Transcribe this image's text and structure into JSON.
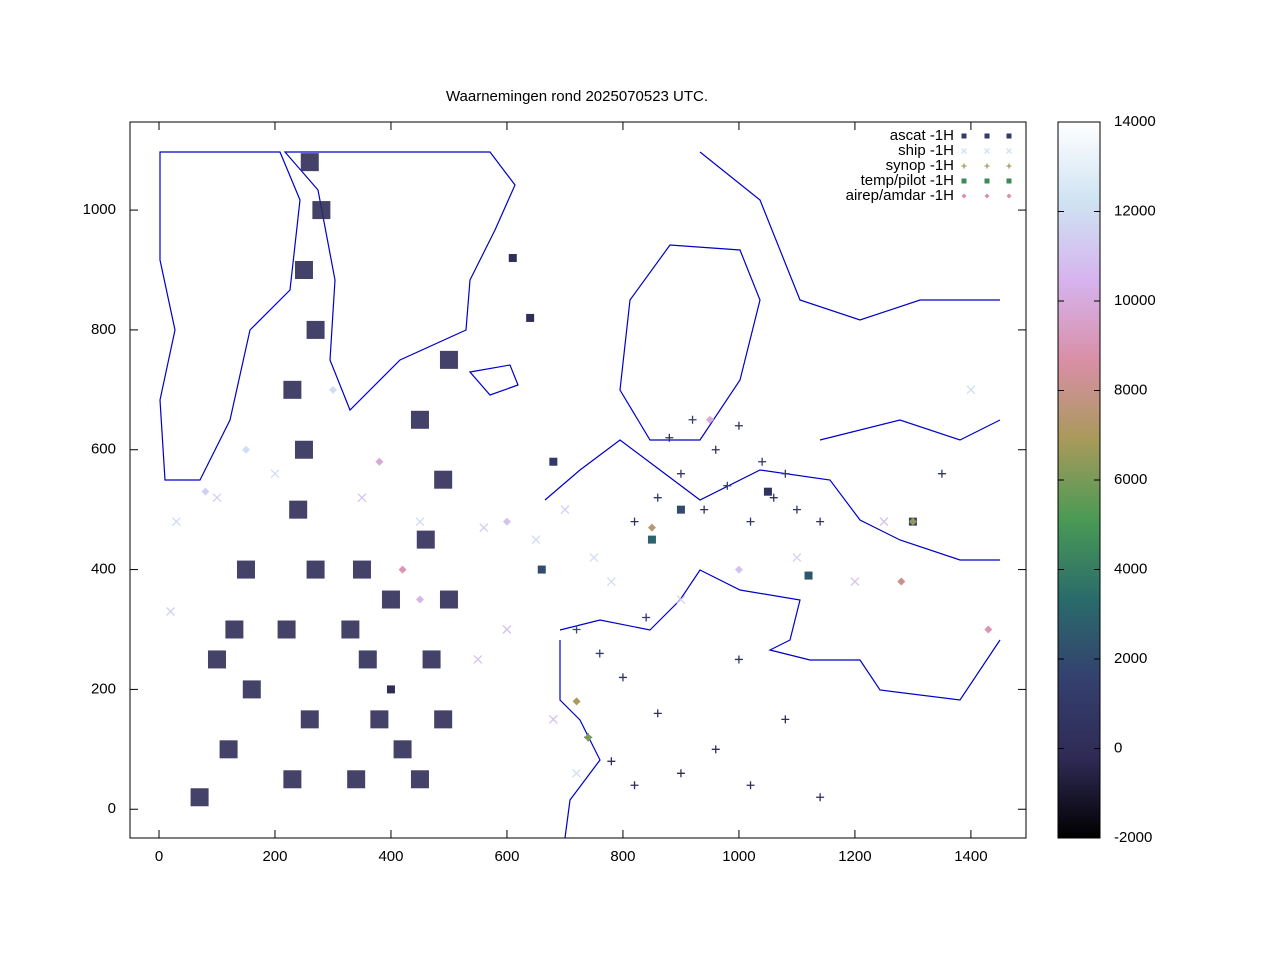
{
  "chart_data": {
    "type": "scatter",
    "title": "Waarnemingen rond 2025070523 UTC.",
    "xlim": [
      -50,
      1495
    ],
    "ylim": [
      -48,
      1147
    ],
    "xticks": [
      0,
      200,
      400,
      600,
      800,
      1000,
      1200,
      1400
    ],
    "yticks": [
      0,
      200,
      400,
      600,
      800,
      1000
    ],
    "zlim": [
      -2000,
      14000
    ],
    "zticks": [
      -2000,
      0,
      2000,
      4000,
      6000,
      8000,
      10000,
      12000,
      14000
    ],
    "palette": [
      "#000000",
      "#2f2a55",
      "#34406e",
      "#2a6b6b",
      "#4a9a55",
      "#a89a5a",
      "#d98fa6",
      "#d6b3ee",
      "#cfe3f2",
      "#ffffff"
    ],
    "legend": "upper right",
    "series": [
      {
        "name": "ascat -1H",
        "symbol": "square",
        "color": "#343a6a",
        "x": [
          70,
          120,
          160,
          130,
          150,
          100,
          230,
          260,
          220,
          270,
          240,
          250,
          230,
          270,
          250,
          280,
          260,
          340,
          380,
          360,
          400,
          350,
          450,
          490,
          470,
          500,
          460,
          490,
          450,
          500,
          420,
          330
        ],
        "y": [
          20,
          100,
          200,
          300,
          400,
          250,
          50,
          150,
          300,
          400,
          500,
          600,
          700,
          800,
          900,
          1000,
          1080,
          50,
          150,
          250,
          350,
          400,
          50,
          150,
          250,
          350,
          450,
          550,
          650,
          750,
          100,
          300
        ],
        "z": [
          0,
          0,
          0,
          0,
          0,
          0,
          0,
          0,
          0,
          0,
          0,
          0,
          0,
          0,
          0,
          0,
          0,
          0,
          0,
          0,
          0,
          0,
          0,
          0,
          0,
          0,
          0,
          0,
          0,
          0,
          0,
          0
        ]
      },
      {
        "name": "ship -1H",
        "symbol": "cross",
        "color": "#cfe3f2",
        "x": [
          30,
          100,
          200,
          350,
          450,
          560,
          650,
          600,
          700,
          750,
          680,
          780,
          1100,
          1250,
          1400,
          20,
          550,
          720,
          900,
          1200
        ],
        "y": [
          480,
          520,
          560,
          520,
          480,
          470,
          450,
          300,
          500,
          420,
          150,
          380,
          420,
          480,
          700,
          330,
          250,
          60,
          350,
          380
        ],
        "z": [
          12000,
          11500,
          12000,
          11000,
          12000,
          11500,
          12000,
          11000,
          11500,
          12000,
          11000,
          12000,
          11500,
          11000,
          12000,
          11500,
          11000,
          12000,
          11500,
          11000
        ]
      },
      {
        "name": "synop -1H",
        "symbol": "plus",
        "color": "#a89a5a",
        "x": [
          820,
          860,
          900,
          940,
          980,
          1020,
          1060,
          1100,
          1140,
          880,
          920,
          960,
          1000,
          1040,
          1080,
          720,
          760,
          800,
          840,
          740,
          780,
          820,
          860,
          900,
          960,
          1020,
          1080,
          1140,
          1000,
          1350
        ],
        "y": [
          480,
          520,
          560,
          500,
          540,
          480,
          520,
          500,
          480,
          620,
          650,
          600,
          640,
          580,
          560,
          300,
          260,
          220,
          320,
          120,
          80,
          40,
          160,
          60,
          100,
          40,
          150,
          20,
          250,
          560
        ],
        "z": [
          500,
          1000,
          800,
          300,
          1500,
          700,
          400,
          900,
          600,
          200,
          1200,
          300,
          500,
          800,
          1000,
          2000,
          1500,
          600,
          900,
          100,
          200,
          100,
          300,
          200,
          100,
          300,
          200,
          100,
          400,
          800
        ]
      },
      {
        "name": "temp/pilot -1H",
        "symbol": "fsquare",
        "color": "#3a8a5a",
        "x": [
          680,
          660,
          1050,
          850,
          1300,
          610,
          640,
          1120,
          400,
          900
        ],
        "y": [
          580,
          400,
          530,
          450,
          480,
          920,
          820,
          390,
          200,
          500
        ],
        "z": [
          1000,
          2000,
          500,
          3000,
          1500,
          0,
          0,
          2500,
          0,
          2000
        ]
      },
      {
        "name": "airep/amdar -1H",
        "symbol": "diamond",
        "color": "#d98fa6",
        "x": [
          300,
          380,
          420,
          450,
          600,
          720,
          740,
          1280,
          1300,
          1430,
          850,
          1000,
          150,
          80,
          950
        ],
        "y": [
          700,
          580,
          400,
          350,
          480,
          180,
          120,
          380,
          480,
          300,
          470,
          400,
          600,
          530,
          650
        ],
        "z": [
          12000,
          10000,
          9000,
          10500,
          11000,
          7000,
          6000,
          8000,
          6500,
          9000,
          7500,
          11000,
          12000,
          11500,
          10000
        ]
      }
    ]
  }
}
